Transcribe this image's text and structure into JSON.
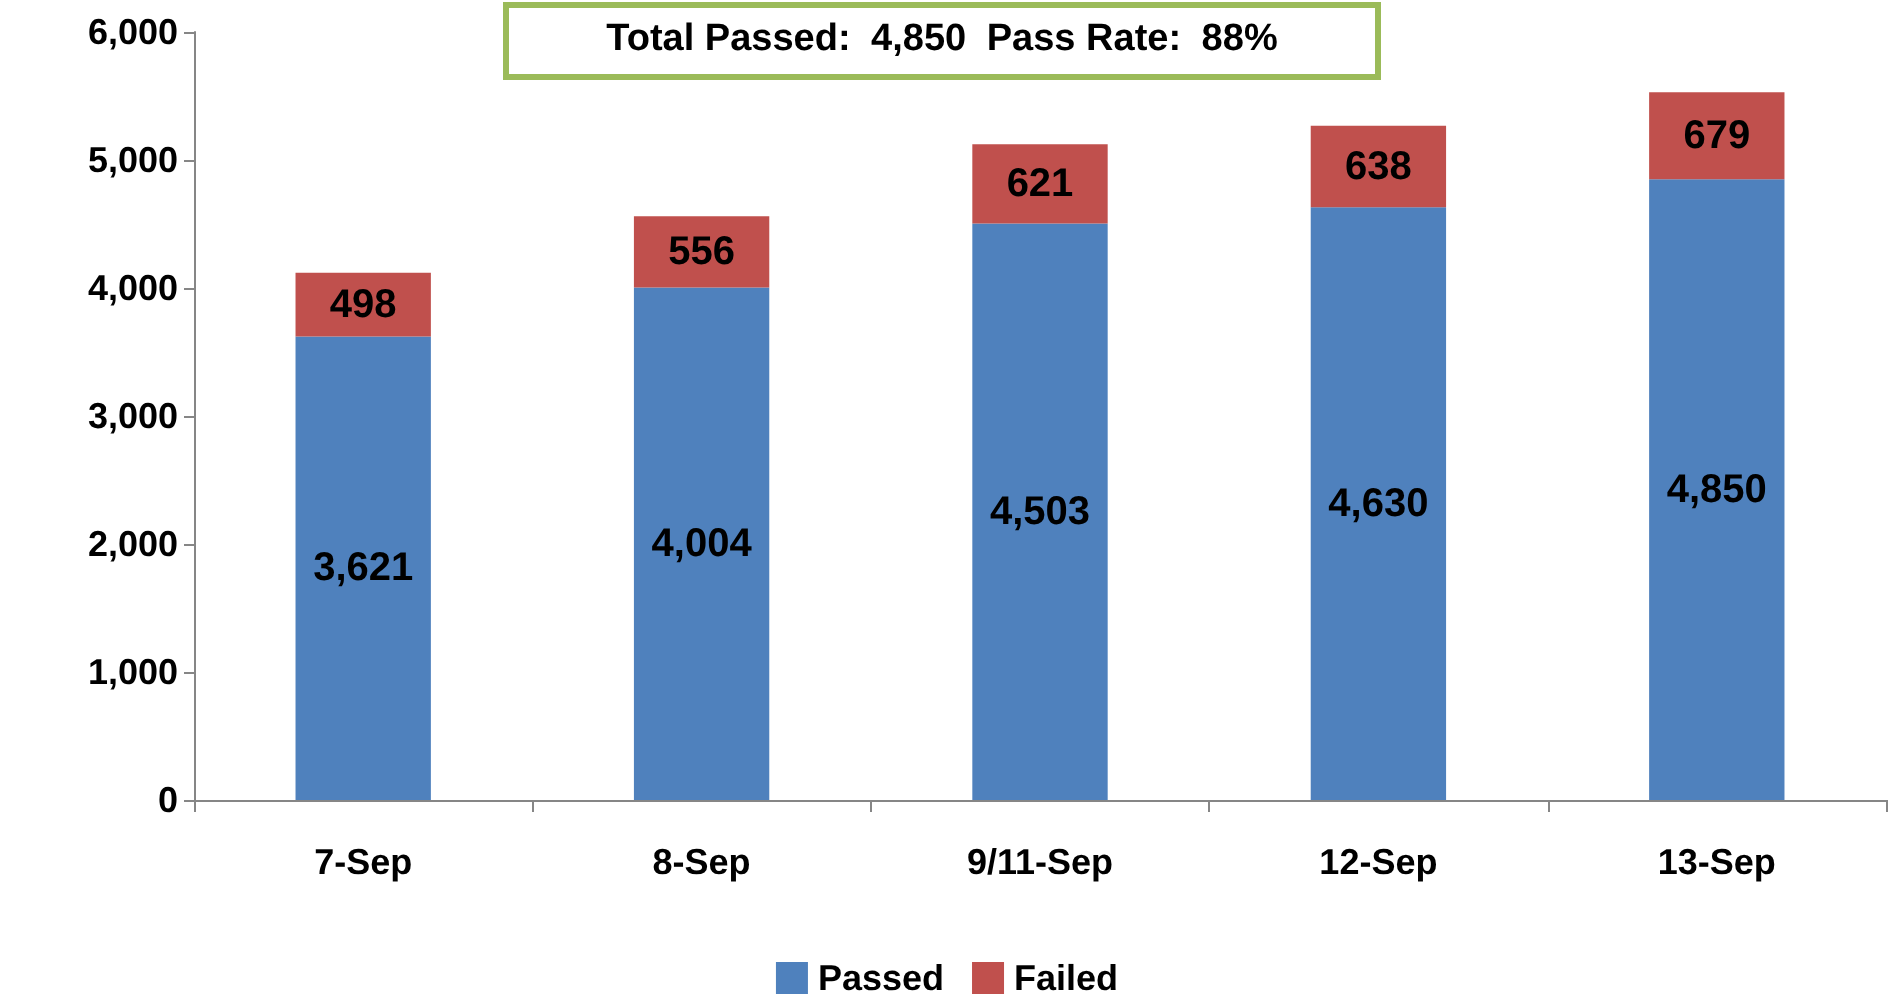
{
  "chart_data": {
    "type": "bar",
    "stacked": true,
    "categories": [
      "7-Sep",
      "8-Sep",
      "9/11-Sep",
      "12-Sep",
      "13-Sep"
    ],
    "series": [
      {
        "name": "Passed",
        "color": "#4f81bd",
        "values": [
          3621,
          4004,
          4503,
          4630,
          4850
        ],
        "value_labels": [
          "3,621",
          "4,004",
          "4,503",
          "4,630",
          "4,850"
        ]
      },
      {
        "name": "Failed",
        "color": "#c0504d",
        "values": [
          498,
          556,
          621,
          638,
          679
        ],
        "value_labels": [
          "498",
          "556",
          "621",
          "638",
          "679"
        ]
      }
    ],
    "ylim": [
      0,
      6000
    ],
    "yticks": [
      0,
      {
        "value": 1000,
        "label": "1,000"
      },
      {
        "value": 2000,
        "label": "2,000"
      },
      {
        "value": 3000,
        "label": "3,000"
      },
      {
        "value": 4000,
        "label": "4,000"
      },
      {
        "value": 5000,
        "label": "5,000"
      },
      {
        "value": 6000,
        "label": "6,000"
      }
    ],
    "grid": false,
    "legend": "bottom",
    "annotations": [
      "Total Passed: 4,850 Pass Rate: 88%"
    ]
  }
}
